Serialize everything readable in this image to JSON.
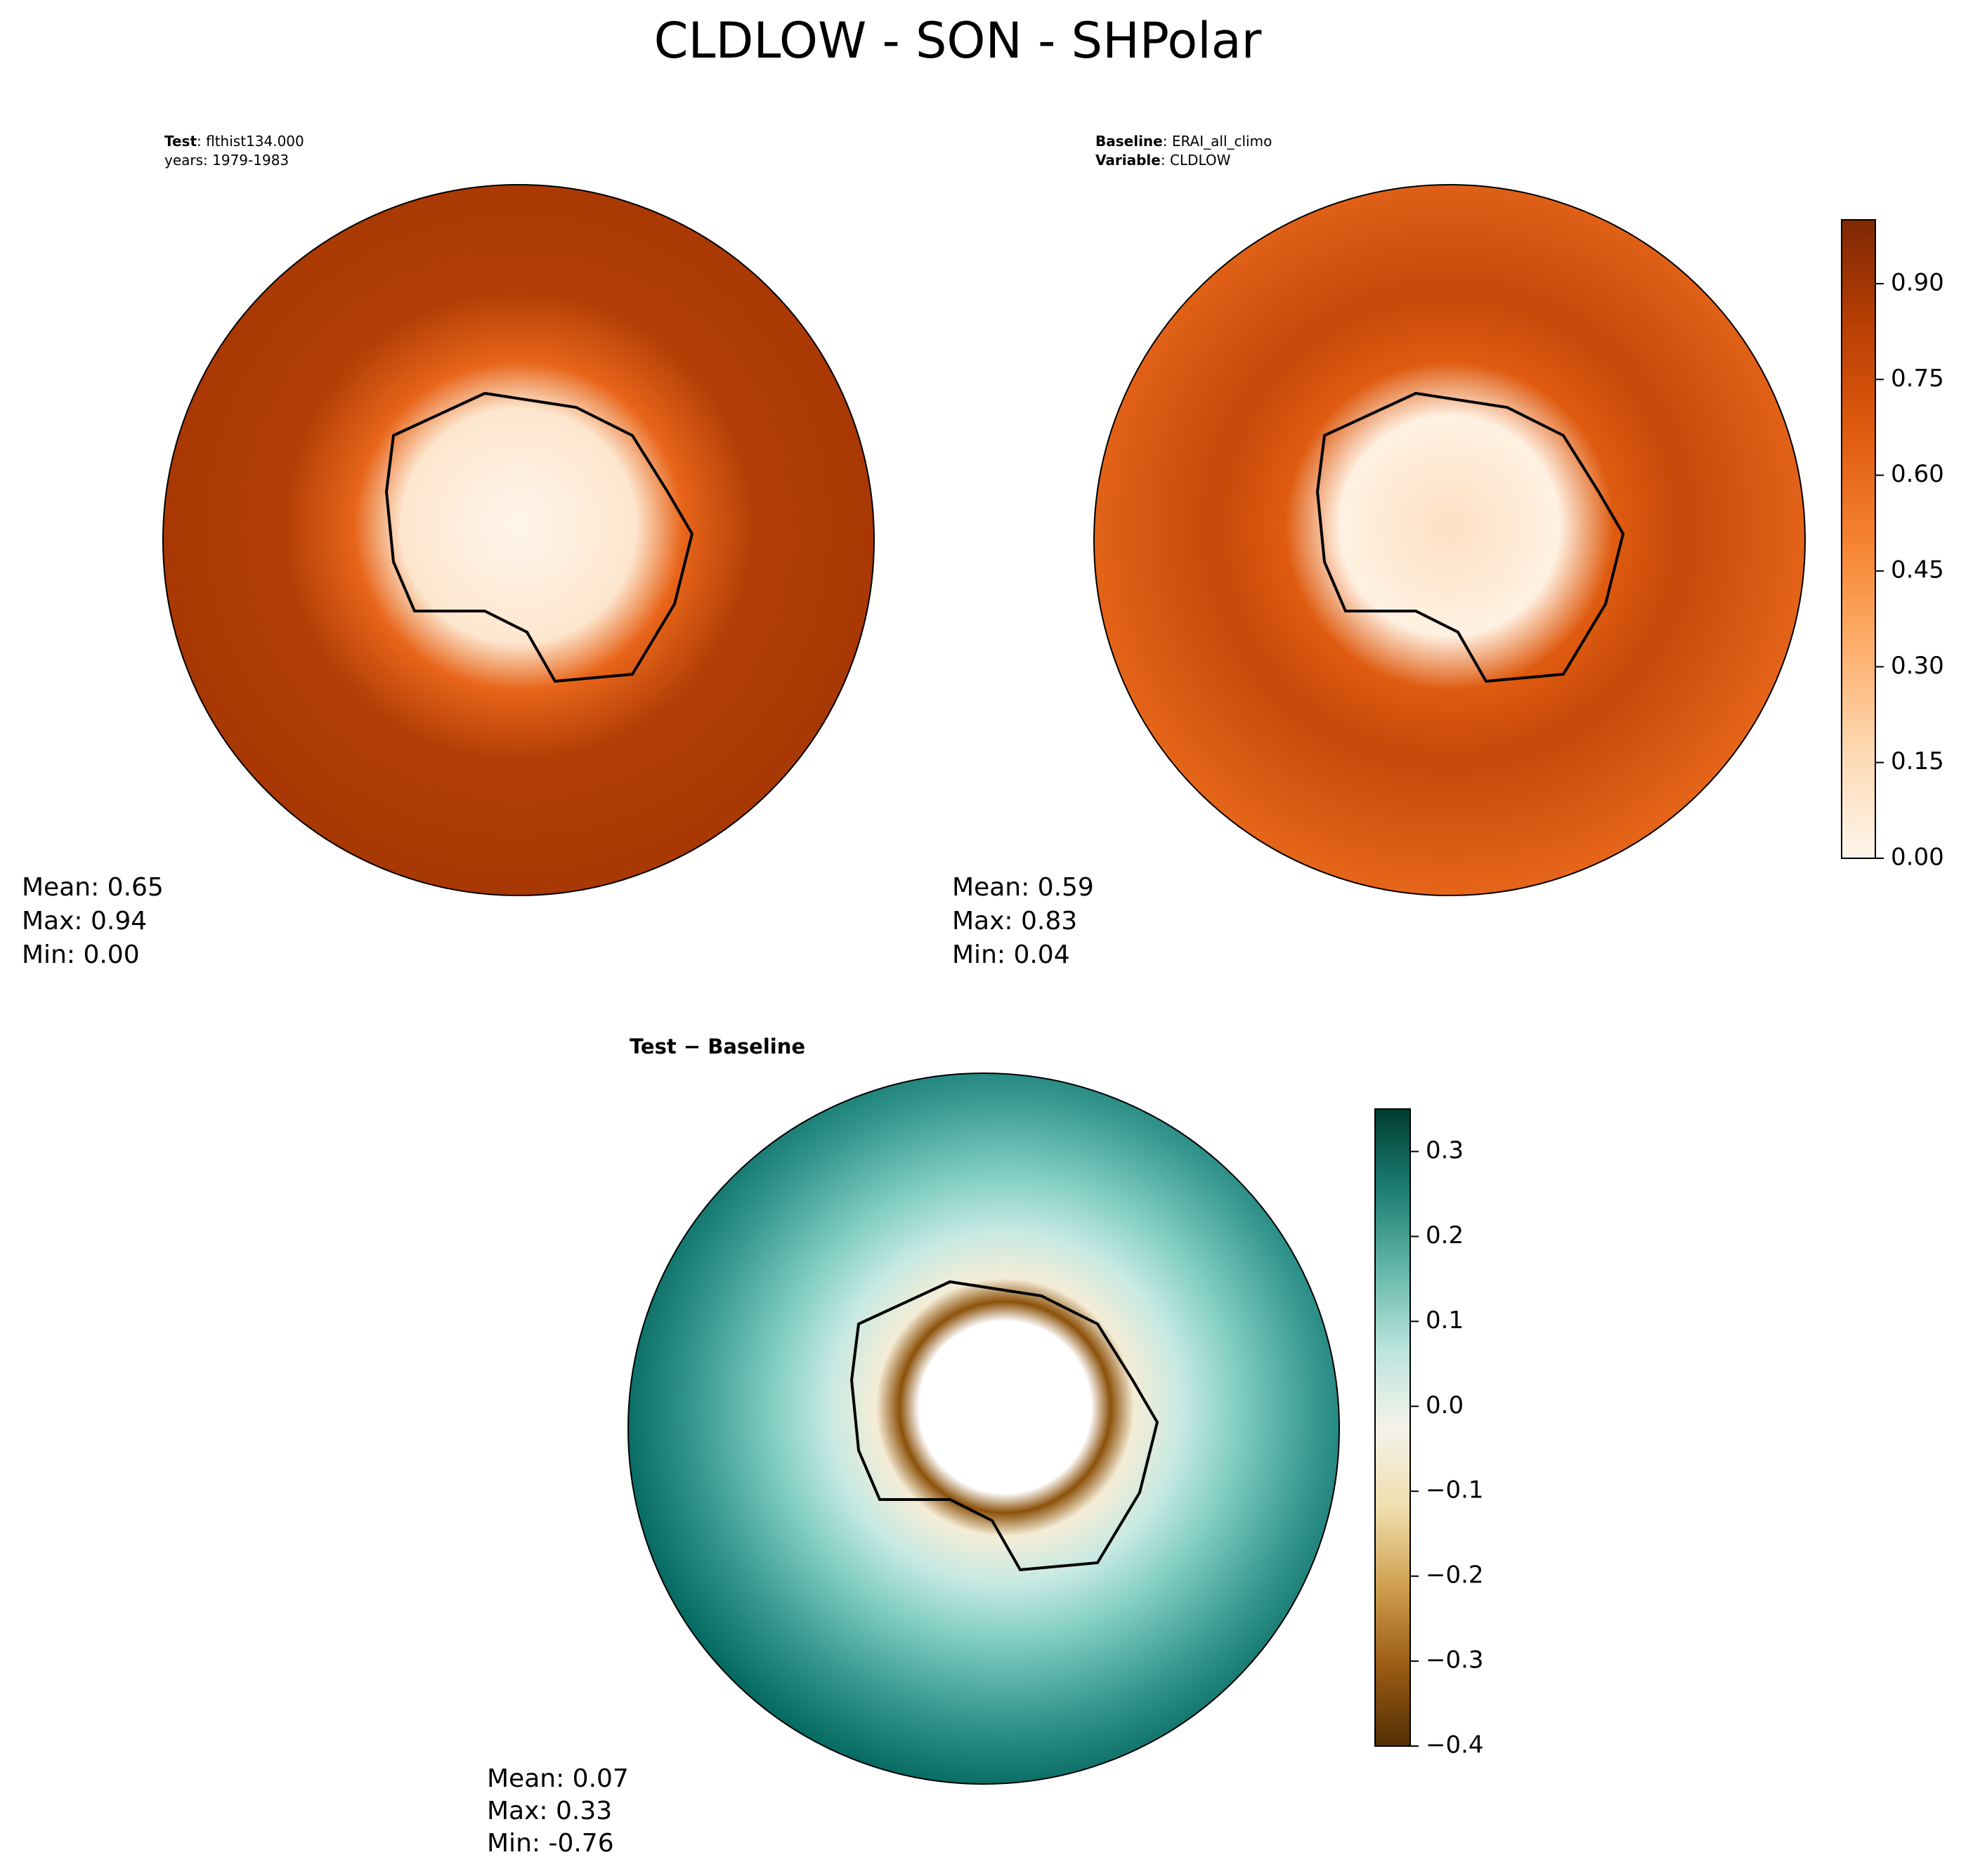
{
  "title": "CLDLOW - SON - SHPolar",
  "panels": [
    {
      "lines": [
        {
          "key": "Test",
          "text": ": flthist134.000"
        },
        {
          "text": "years: 1979-1983"
        }
      ],
      "stats": [
        "Mean:  0.65",
        "Max:  0.94",
        "Min:  0.00"
      ]
    },
    {
      "lines": [
        {
          "key": "Baseline",
          "text": ": ERAI_all_climo"
        },
        {
          "key": "Variable",
          "text": ": CLDLOW"
        }
      ],
      "stats": [
        "Mean:  0.59",
        "Max:  0.83",
        "Min:  0.04"
      ]
    },
    {
      "lines": [
        {
          "key": "Test − Baseline"
        }
      ],
      "stats": [
        "Mean:  0.07",
        "Max:  0.33",
        "Min: -0.76"
      ]
    }
  ],
  "colorbars": [
    {
      "ylim": [
        0,
        1.0
      ],
      "yticks": [
        {
          "value": 0,
          "label": "0.00"
        },
        {
          "value": 0.15,
          "label": "0.15"
        },
        {
          "value": 0.3,
          "label": "0.30"
        },
        {
          "value": 0.45,
          "label": "0.45"
        },
        {
          "value": 0.6,
          "label": "0.60"
        },
        {
          "value": 0.75,
          "label": "0.75"
        },
        {
          "value": 0.9,
          "label": "0.90"
        }
      ],
      "colors": [
        "#fff5eb",
        "#fdd9b3",
        "#fdae6b",
        "#f5822e",
        "#e05b0f",
        "#b93f03",
        "#7f2704"
      ]
    },
    {
      "ylim": [
        -0.4,
        0.35
      ],
      "yticks": [
        {
          "value": -0.4,
          "label": "−0.4"
        },
        {
          "value": -0.3,
          "label": "−0.3"
        },
        {
          "value": -0.2,
          "label": "−0.2"
        },
        {
          "value": -0.1,
          "label": "−0.1"
        },
        {
          "value": 0,
          "label": "0.0"
        },
        0.1,
        0.2,
        0.3
      ],
      "colors": [
        "#543005",
        "#9a5b14",
        "#cf9f4f",
        "#f0dfae",
        "#f4f2ea",
        "#b9e4dc",
        "#63b5a8",
        "#1d7d72",
        "#003c30"
      ]
    }
  ]
}
